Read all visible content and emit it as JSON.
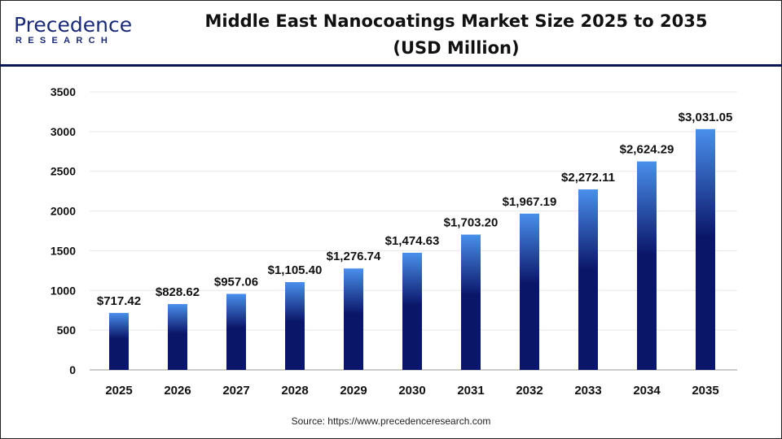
{
  "logo": {
    "brand": "Precedence",
    "sub": "RESEARCH"
  },
  "title_line1": "Middle East Nanocoatings Market Size 2025 to 2035",
  "title_line2": "(USD Million)",
  "source": "Source: https://www.precedenceresearch.com",
  "colors": {
    "bar_top": "#4a8fec",
    "bar_bottom": "#0a1668",
    "axis": "#bbbbbb",
    "grid": "#e8e8e8"
  },
  "chart_data": {
    "type": "bar",
    "title": "Middle East Nanocoatings Market Size 2025 to 2035 (USD Million)",
    "categories": [
      "2025",
      "2026",
      "2027",
      "2028",
      "2029",
      "2030",
      "2031",
      "2032",
      "2033",
      "2034",
      "2035"
    ],
    "values": [
      717.42,
      828.62,
      957.06,
      1105.4,
      1276.74,
      1474.63,
      1703.2,
      1967.19,
      2272.11,
      2624.29,
      3031.05
    ],
    "data_labels": [
      "$717.42",
      "$828.62",
      "$957.06",
      "$1,105.40",
      "$1,276.74",
      "$1,474.63",
      "$1,703.20",
      "$1,967.19",
      "$2,272.11",
      "$2,624.29",
      "$3,031.05"
    ],
    "y_ticks": [
      "0",
      "500",
      "1000",
      "1500",
      "2000",
      "2500",
      "3000",
      "3500"
    ],
    "ylim": [
      0,
      3500
    ],
    "grid": true,
    "xlabel": "",
    "ylabel": ""
  }
}
